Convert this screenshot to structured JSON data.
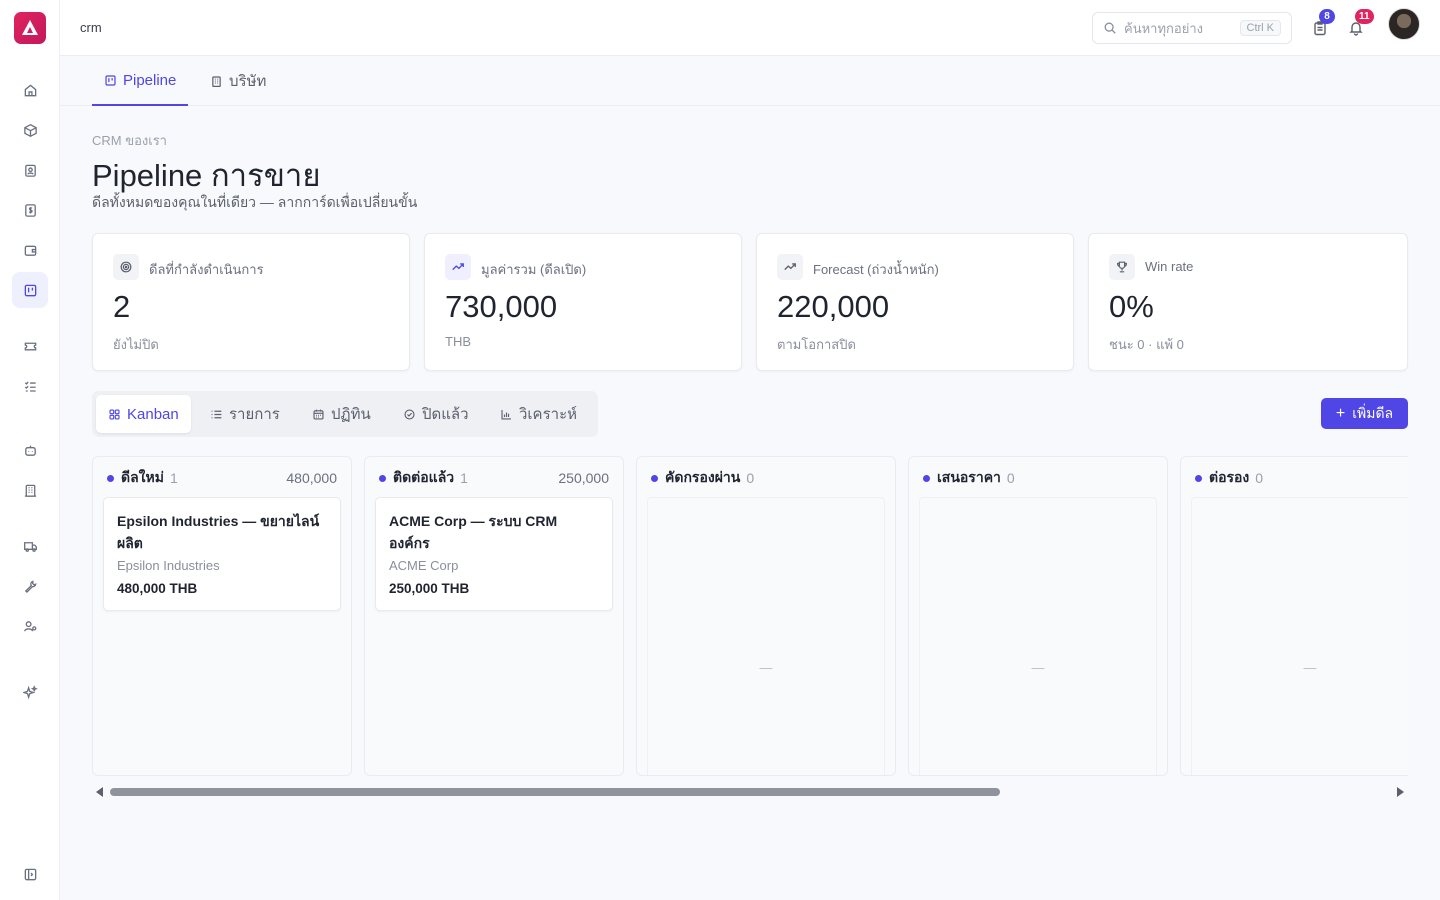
{
  "topbar": {
    "breadcrumb": "crm",
    "search_placeholder": "ค้นหาทุกอย่าง",
    "search_shortcut": "Ctrl K",
    "tasks_badge": "8",
    "notifications_badge": "11"
  },
  "page_tabs": [
    {
      "label": "Pipeline",
      "icon": "kanban-icon",
      "active": true
    },
    {
      "label": "บริษัท",
      "icon": "building-icon",
      "active": false
    }
  ],
  "header": {
    "kicker": "CRM ของเรา",
    "title": "Pipeline การขาย",
    "subtitle": "ดีลทั้งหมดของคุณในที่เดียว — ลากการ์ดเพื่อเปลี่ยนขั้น"
  },
  "stats": [
    {
      "icon": "target-icon",
      "label": "ดีลที่กำลังดำเนินการ",
      "value": "2",
      "sub": "ยังไม่ปิด"
    },
    {
      "icon": "trend-up-icon",
      "label": "มูลค่ารวม (ดีลเปิด)",
      "value": "730,000",
      "sub": "THB"
    },
    {
      "icon": "trend-up-icon",
      "label": "Forecast (ถ่วงน้ำหนัก)",
      "value": "220,000",
      "sub": "ตามโอกาสปิด"
    },
    {
      "icon": "trophy-icon",
      "label": "Win rate",
      "value": "0%",
      "sub": "ชนะ 0 · แพ้ 0"
    }
  ],
  "view_tabs": [
    {
      "label": "Kanban",
      "icon": "grid-icon",
      "active": true
    },
    {
      "label": "รายการ",
      "icon": "list-icon",
      "active": false
    },
    {
      "label": "ปฏิทิน",
      "icon": "calendar-icon",
      "active": false
    },
    {
      "label": "ปิดแล้ว",
      "icon": "check-circle-icon",
      "active": false
    },
    {
      "label": "วิเคราะห์",
      "icon": "bar-chart-icon",
      "active": false
    }
  ],
  "add_deal_label": "เพิ่มดีล",
  "board": {
    "columns": [
      {
        "name": "ดีลใหม่",
        "count": "1",
        "total": "480,000",
        "cards": [
          {
            "title": "Epsilon Industries — ขยายไลน์ผลิต",
            "company": "Epsilon Industries",
            "amount": "480,000 THB"
          }
        ]
      },
      {
        "name": "ติดต่อแล้ว",
        "count": "1",
        "total": "250,000",
        "cards": [
          {
            "title": "ACME Corp — ระบบ CRM องค์กร",
            "company": "ACME Corp",
            "amount": "250,000 THB"
          }
        ]
      },
      {
        "name": "คัดกรองผ่าน",
        "count": "0",
        "total": "",
        "empty_text": "—",
        "cards": []
      },
      {
        "name": "เสนอราคา",
        "count": "0",
        "total": "",
        "empty_text": "—",
        "cards": []
      },
      {
        "name": "ต่อรอง",
        "count": "0",
        "total": "",
        "empty_text": "—",
        "cards": []
      }
    ]
  },
  "colors": {
    "accent": "#4f46e5",
    "logo": "#e0245e",
    "badge_tasks": "#4f46e5",
    "badge_notifications": "#e0245e"
  }
}
